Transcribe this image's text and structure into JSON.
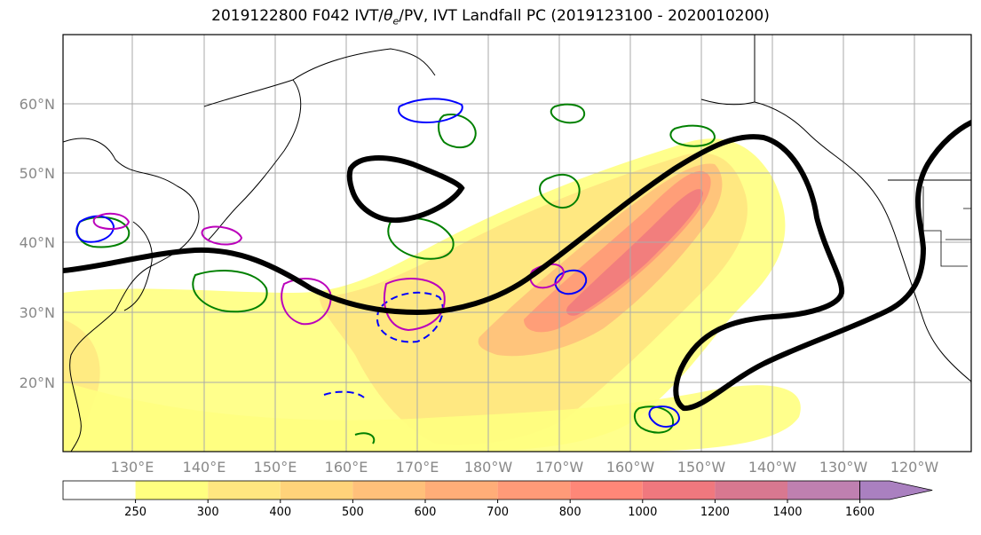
{
  "title": {
    "prefix": "2019122800 F042 IVT/",
    "theta": "θ",
    "theta_sub": "e",
    "suffix": "/PV, IVT Landfall PC (2019123100 - 2020010200)"
  },
  "lat_labels": [
    "60°N",
    "50°N",
    "40°N",
    "30°N",
    "20°N"
  ],
  "lon_labels": [
    "130°E",
    "140°E",
    "150°E",
    "160°E",
    "170°E",
    "180°W",
    "170°W",
    "160°W",
    "150°W",
    "140°W",
    "130°W",
    "120°W"
  ],
  "colorbar": {
    "levels": [
      "250",
      "300",
      "400",
      "500",
      "600",
      "700",
      "800",
      "1000",
      "1200",
      "1400",
      "1600"
    ],
    "colors": [
      "#ffffff",
      "#ffff80",
      "#ffe680",
      "#ffd37a",
      "#ffc07a",
      "#ffad78",
      "#ff9a78",
      "#ff8778",
      "#f0787e",
      "#d87890",
      "#bf80b0",
      "#aa80c0"
    ]
  },
  "map_colors": {
    "ocean_fill": "#ffffff",
    "coast": "#000000",
    "grid": "#aaaaaa",
    "pc_contour": "#000000",
    "theta_contour": "#008000",
    "pv_contour": "#0000ff",
    "pv2_contour": "#bb00bb"
  }
}
